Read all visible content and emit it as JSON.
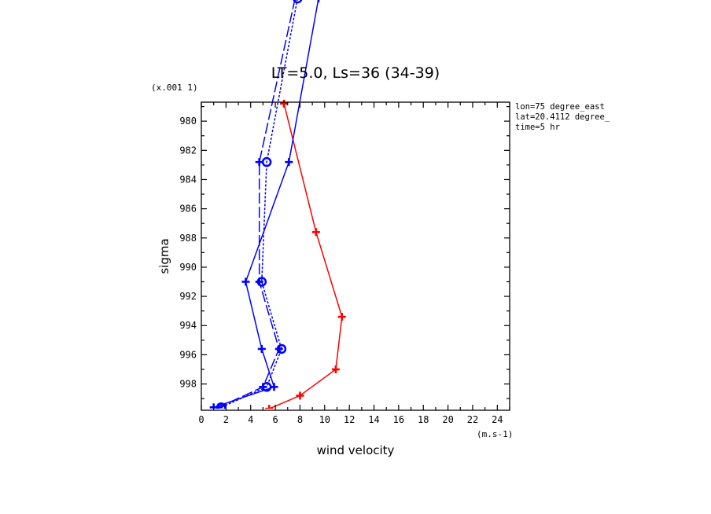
{
  "chart_data": {
    "type": "line",
    "title": "LT=5.0, Ls=36 (34-39)",
    "xlabel": "wind velocity",
    "ylabel": "sigma",
    "x_scale_note": "(m.s-1)",
    "y_scale_note": "(x.001 1)",
    "xlim": [
      0,
      25
    ],
    "ylim": [
      999.8,
      978.7
    ],
    "x_ticks": [
      0,
      2,
      4,
      6,
      8,
      10,
      12,
      14,
      16,
      18,
      20,
      22,
      24
    ],
    "y_ticks": [
      980,
      982,
      984,
      986,
      988,
      990,
      992,
      994,
      996,
      998
    ],
    "info_lines": [
      "lon=75 degree_east",
      "lat=20.4112 degree_",
      "time=5 hr"
    ],
    "series": [
      {
        "style": "solid",
        "color": "#ff0000",
        "marker": "plus",
        "points": [
          [
            6.7,
            978.8
          ],
          [
            9.3,
            987.6
          ],
          [
            11.4,
            993.4
          ],
          [
            10.9,
            997.0
          ],
          [
            8.0,
            998.8
          ],
          [
            5.5,
            999.7
          ]
        ]
      },
      {
        "style": "solid",
        "color": "#0000ff",
        "marker": "plus",
        "points": [
          [
            9.5,
            971.6
          ],
          [
            7.1,
            982.8
          ],
          [
            3.6,
            991.0
          ],
          [
            4.9,
            995.6
          ],
          [
            5.9,
            998.2
          ],
          [
            1.0,
            999.6
          ]
        ]
      },
      {
        "style": "dashed",
        "color": "#0000ff",
        "marker": "plus",
        "points": [
          [
            7.6,
            971.6
          ],
          [
            4.7,
            982.8
          ],
          [
            4.7,
            991.0
          ],
          [
            6.3,
            995.6
          ],
          [
            5.0,
            998.2
          ],
          [
            1.4,
            999.6
          ]
        ]
      },
      {
        "style": "dotted",
        "color": "#0000ff",
        "marker": "circle",
        "points": [
          [
            7.8,
            971.6
          ],
          [
            5.3,
            982.8
          ],
          [
            4.9,
            991.0
          ],
          [
            6.5,
            995.6
          ],
          [
            5.3,
            998.2
          ],
          [
            1.6,
            999.6
          ]
        ]
      }
    ]
  }
}
